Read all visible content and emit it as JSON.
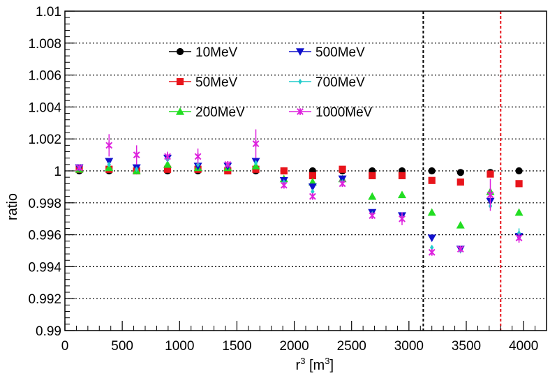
{
  "chart_data": {
    "type": "scatter",
    "title": "",
    "xlabel": "r",
    "xlabel_sup": "3",
    "xlabel_unit_open": " [m",
    "xlabel_unit_sup": "3",
    "xlabel_unit_close": "]",
    "ylabel": "ratio",
    "xlim": [
      0,
      4200
    ],
    "ylim": [
      0.99,
      1.01
    ],
    "x_ticks": [
      0,
      500,
      1000,
      1500,
      2000,
      2500,
      3000,
      3500,
      4000
    ],
    "x_tick_labels": [
      "0",
      "500",
      "1000",
      "1500",
      "2000",
      "2500",
      "3000",
      "3500",
      "4000"
    ],
    "y_ticks": [
      0.99,
      0.992,
      0.994,
      0.996,
      0.998,
      1.0,
      1.002,
      1.004,
      1.006,
      1.008,
      1.01
    ],
    "y_tick_labels": [
      "0.99",
      "0.992",
      "0.994",
      "0.996",
      "0.998",
      "1",
      "1.002",
      "1.004",
      "1.006",
      "1.008",
      "1.01"
    ],
    "grid": "horizontal-dotted",
    "legend_position": "top-left",
    "x": [
      125,
      385,
      625,
      895,
      1160,
      1420,
      1665,
      1910,
      2160,
      2420,
      2680,
      2940,
      3200,
      3450,
      3710,
      3960
    ],
    "series": [
      {
        "name": "10MeV",
        "color": "#000000",
        "marker": "circle",
        "values": [
          1.0,
          1.0,
          1.0,
          1.0,
          1.0,
          1.0,
          1.0,
          1.0,
          1.0,
          1.0,
          1.0,
          1.0,
          1.0,
          0.9999,
          0.9999,
          1.0
        ],
        "errors": [
          0,
          0,
          0,
          0,
          0,
          0,
          0,
          0,
          0,
          0,
          0,
          0,
          0,
          0,
          0,
          0
        ]
      },
      {
        "name": "50MeV",
        "color": "#e8141b",
        "marker": "square",
        "values": [
          1.0001,
          1.0001,
          1.0,
          1.0001,
          1.0001,
          1.0,
          1.0001,
          1.0,
          0.9997,
          1.0001,
          0.9997,
          0.9997,
          0.9994,
          0.9993,
          0.9998,
          0.9992
        ],
        "errors": [
          0,
          0,
          0,
          0,
          0,
          0,
          0,
          0,
          0,
          0,
          0,
          0,
          0,
          0,
          0,
          0
        ]
      },
      {
        "name": "200MeV",
        "color": "#22dd22",
        "marker": "triangle-up",
        "values": [
          1.0001,
          1.0002,
          1.0,
          1.0004,
          1.0002,
          1.0002,
          1.0003,
          0.9995,
          0.9993,
          0.9995,
          0.9984,
          0.9985,
          0.9974,
          0.9966,
          0.9987,
          0.9974
        ],
        "errors": [
          0,
          0,
          0,
          0,
          0,
          0,
          0,
          0,
          0,
          0,
          0,
          0,
          0,
          0,
          0,
          0
        ]
      },
      {
        "name": "500MeV",
        "color": "#1010cc",
        "marker": "triangle-down",
        "values": [
          1.0002,
          1.0006,
          1.0002,
          1.0008,
          1.0003,
          1.0003,
          1.0006,
          0.9994,
          0.999,
          0.9995,
          0.9974,
          0.9972,
          0.9958,
          0.9951,
          0.9981,
          0.9959
        ],
        "errors": [
          0,
          0,
          0,
          0,
          0,
          0,
          0,
          0,
          0,
          0,
          0,
          0,
          0,
          0,
          0,
          0
        ]
      },
      {
        "name": "700MeV",
        "color": "#22cccc",
        "marker": "diamond",
        "values": [
          1.0002,
          1.0004,
          1.0001,
          1.0007,
          1.0004,
          1.0004,
          1.0005,
          0.9993,
          0.9987,
          0.9993,
          0.9973,
          0.9971,
          0.9952,
          0.995,
          0.9978,
          0.9961
        ],
        "errors": [
          0,
          0,
          0,
          0,
          0,
          0,
          0,
          0,
          0,
          0,
          0,
          0,
          0,
          0,
          0,
          0.0003
        ]
      },
      {
        "name": "1000MeV",
        "color": "#dd22dd",
        "marker": "star",
        "values": [
          1.0002,
          1.0016,
          1.001,
          1.0009,
          1.0009,
          1.0004,
          1.0017,
          0.9991,
          0.9984,
          0.9992,
          0.9972,
          0.997,
          0.9949,
          0.9951,
          0.9985,
          0.9958
        ],
        "errors": [
          0.0001,
          0.0007,
          0.0006,
          0.0003,
          0.0005,
          0.0002,
          0.0009,
          0.0002,
          0.0002,
          0.0002,
          0.0002,
          0.0004,
          0.0002,
          0.0002,
          0.001,
          0.0003
        ]
      }
    ],
    "vertical_lines": [
      {
        "x": 3125,
        "color": "#000000",
        "style": "dashed"
      },
      {
        "x": 3800,
        "color": "#e8141b",
        "style": "dashed"
      }
    ]
  }
}
